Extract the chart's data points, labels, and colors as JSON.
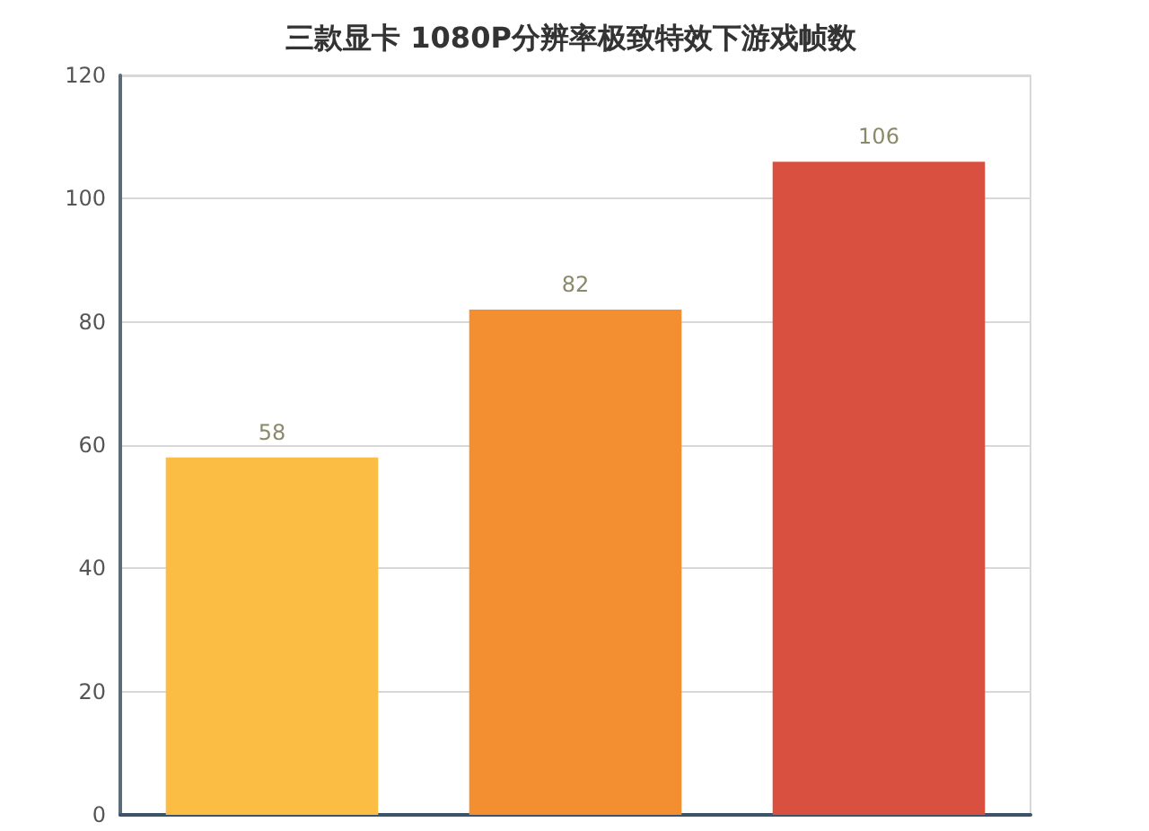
{
  "chart_data": {
    "type": "bar",
    "title": "三款显卡 1080P分辨率极致特效下游戏帧数",
    "categories": [
      null,
      null,
      null
    ],
    "values": [
      58,
      82,
      106
    ],
    "colors": [
      "#fbbd44",
      "#f38f30",
      "#d95040"
    ],
    "ylim": [
      0,
      120
    ],
    "yticks": [
      0,
      20,
      40,
      60,
      80,
      100,
      120
    ],
    "grid": "y",
    "data_labels": true,
    "tick_labels": "y"
  }
}
